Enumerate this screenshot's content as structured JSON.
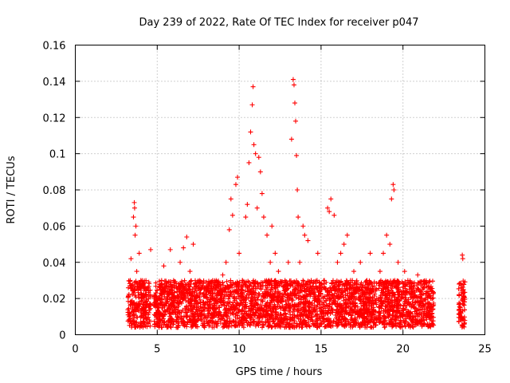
{
  "chart_data": {
    "type": "scatter",
    "title": "Day 239 of 2022, Rate Of TEC Index for receiver p047",
    "xlabel": "GPS time / hours",
    "ylabel": "ROTI / TECUs",
    "xlim": [
      0,
      25
    ],
    "ylim": [
      0,
      0.16
    ],
    "xticks": [
      "0",
      "5",
      "10",
      "15",
      "20",
      "25"
    ],
    "yticks": [
      "0",
      "0.02",
      "0.04",
      "0.06",
      "0.08",
      "0.1",
      "0.12",
      "0.14",
      "0.16"
    ],
    "grid": true,
    "marker": "plus",
    "color": "#ff0000",
    "points": [
      [
        3.3,
        0.012
      ],
      [
        3.35,
        0.03
      ],
      [
        3.4,
        0.042
      ],
      [
        3.45,
        0.018
      ],
      [
        3.5,
        0.025
      ],
      [
        3.55,
        0.065
      ],
      [
        3.6,
        0.073
      ],
      [
        3.62,
        0.07
      ],
      [
        3.65,
        0.055
      ],
      [
        3.7,
        0.06
      ],
      [
        3.75,
        0.035
      ],
      [
        3.8,
        0.015
      ],
      [
        3.9,
        0.045
      ],
      [
        4.0,
        0.03
      ],
      [
        4.1,
        0.02
      ],
      [
        4.2,
        0.012
      ],
      [
        4.3,
        0.018
      ],
      [
        4.6,
        0.047
      ],
      [
        4.8,
        0.02
      ],
      [
        5.0,
        0.015
      ],
      [
        5.2,
        0.025
      ],
      [
        5.4,
        0.038
      ],
      [
        5.6,
        0.02
      ],
      [
        5.8,
        0.047
      ],
      [
        6.0,
        0.03
      ],
      [
        6.2,
        0.015
      ],
      [
        6.4,
        0.04
      ],
      [
        6.6,
        0.048
      ],
      [
        6.8,
        0.054
      ],
      [
        7.0,
        0.035
      ],
      [
        7.2,
        0.05
      ],
      [
        7.4,
        0.022
      ],
      [
        7.6,
        0.03
      ],
      [
        7.8,
        0.018
      ],
      [
        8.0,
        0.025
      ],
      [
        8.2,
        0.012
      ],
      [
        8.4,
        0.02
      ],
      [
        8.6,
        0.03
      ],
      [
        8.8,
        0.015
      ],
      [
        9.0,
        0.033
      ],
      [
        9.2,
        0.04
      ],
      [
        9.4,
        0.058
      ],
      [
        9.5,
        0.075
      ],
      [
        9.6,
        0.066
      ],
      [
        9.8,
        0.083
      ],
      [
        9.9,
        0.087
      ],
      [
        10.0,
        0.045
      ],
      [
        10.2,
        0.03
      ],
      [
        10.4,
        0.065
      ],
      [
        10.5,
        0.072
      ],
      [
        10.6,
        0.095
      ],
      [
        10.7,
        0.112
      ],
      [
        10.8,
        0.127
      ],
      [
        10.85,
        0.137
      ],
      [
        10.9,
        0.105
      ],
      [
        11.0,
        0.1
      ],
      [
        11.1,
        0.07
      ],
      [
        11.2,
        0.098
      ],
      [
        11.3,
        0.09
      ],
      [
        11.4,
        0.078
      ],
      [
        11.5,
        0.065
      ],
      [
        11.7,
        0.055
      ],
      [
        11.9,
        0.04
      ],
      [
        12.0,
        0.06
      ],
      [
        12.2,
        0.045
      ],
      [
        12.4,
        0.035
      ],
      [
        12.6,
        0.02
      ],
      [
        12.8,
        0.03
      ],
      [
        13.0,
        0.04
      ],
      [
        13.2,
        0.108
      ],
      [
        13.3,
        0.141
      ],
      [
        13.35,
        0.138
      ],
      [
        13.4,
        0.128
      ],
      [
        13.45,
        0.118
      ],
      [
        13.5,
        0.099
      ],
      [
        13.55,
        0.08
      ],
      [
        13.6,
        0.065
      ],
      [
        13.7,
        0.04
      ],
      [
        13.9,
        0.06
      ],
      [
        14.0,
        0.055
      ],
      [
        14.2,
        0.052
      ],
      [
        14.4,
        0.03
      ],
      [
        14.6,
        0.02
      ],
      [
        14.8,
        0.045
      ],
      [
        15.0,
        0.015
      ],
      [
        15.2,
        0.03
      ],
      [
        15.4,
        0.07
      ],
      [
        15.5,
        0.068
      ],
      [
        15.6,
        0.075
      ],
      [
        15.8,
        0.066
      ],
      [
        16.0,
        0.04
      ],
      [
        16.2,
        0.045
      ],
      [
        16.4,
        0.05
      ],
      [
        16.6,
        0.055
      ],
      [
        16.8,
        0.03
      ],
      [
        17.0,
        0.035
      ],
      [
        17.2,
        0.025
      ],
      [
        17.4,
        0.04
      ],
      [
        17.6,
        0.02
      ],
      [
        17.8,
        0.03
      ],
      [
        18.0,
        0.045
      ],
      [
        18.2,
        0.015
      ],
      [
        18.4,
        0.02
      ],
      [
        18.6,
        0.035
      ],
      [
        18.8,
        0.045
      ],
      [
        19.0,
        0.055
      ],
      [
        19.2,
        0.05
      ],
      [
        19.3,
        0.075
      ],
      [
        19.4,
        0.083
      ],
      [
        19.45,
        0.08
      ],
      [
        19.5,
        0.03
      ],
      [
        19.7,
        0.04
      ],
      [
        19.9,
        0.02
      ],
      [
        20.1,
        0.035
      ],
      [
        20.3,
        0.03
      ],
      [
        20.5,
        0.025
      ],
      [
        20.7,
        0.015
      ],
      [
        20.9,
        0.033
      ],
      [
        21.1,
        0.02
      ],
      [
        21.3,
        0.028
      ],
      [
        21.5,
        0.015
      ],
      [
        21.7,
        0.02
      ],
      [
        23.5,
        0.015
      ],
      [
        23.55,
        0.012
      ],
      [
        23.6,
        0.01
      ],
      [
        23.62,
        0.044
      ],
      [
        23.65,
        0.042
      ]
    ],
    "baseline": {
      "ranges": [
        [
          3.2,
          4.6
        ],
        [
          4.8,
          18.4
        ],
        [
          18.5,
          21.9
        ],
        [
          23.4,
          23.8
        ]
      ],
      "y_min": 0.004,
      "y_max": 0.03
    }
  }
}
